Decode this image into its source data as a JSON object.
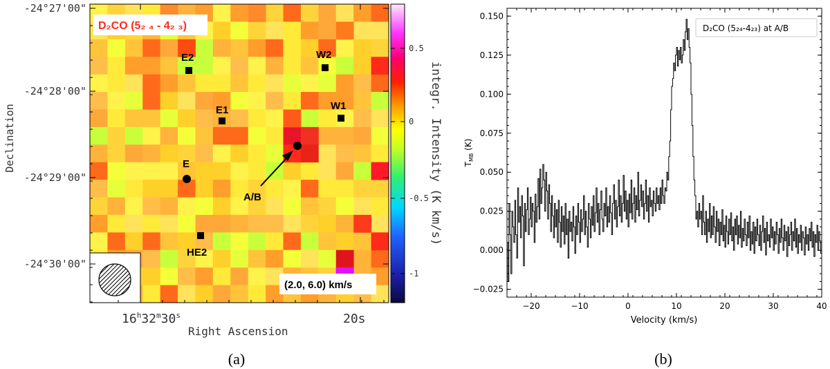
{
  "panel_a": {
    "caption": "(a)",
    "title": "D₂CO (5₂ ₄ - 4₂ ₃)",
    "velocity_range": "(2.0, 6.0) km/s",
    "xlabel": "Right Ascension",
    "ylabel": "Declination",
    "colorbar_label": "integr. Intensity (K km/s)",
    "ra_ticks": [
      {
        "label": "16h32m30s",
        "h": "16",
        "m": "32",
        "s": "30"
      },
      {
        "label": "20s"
      }
    ],
    "dec_ticks": [
      "-24°27'00\"",
      "-24°28'00\"",
      "-24°29'00\"",
      "-24°30'00\""
    ],
    "colorbar_ticks": [
      "0.5",
      "0",
      "-0.5",
      "-1"
    ],
    "colorbar_range": [
      -1.2,
      0.75
    ],
    "sources": [
      {
        "name": "E2",
        "marker": "square"
      },
      {
        "name": "W2",
        "marker": "square"
      },
      {
        "name": "E1",
        "marker": "square"
      },
      {
        "name": "W1",
        "marker": "square"
      },
      {
        "name": "A/B",
        "marker": "circle"
      },
      {
        "name": "E",
        "marker": "circle"
      },
      {
        "name": "HE2",
        "marker": "square"
      }
    ],
    "beam": "hatched-circle"
  },
  "chart_data": [
    {
      "type": "heatmap",
      "title": "D₂CO (5₂ ₄ - 4₂ ₃)",
      "xlabel": "Right Ascension",
      "ylabel": "Declination",
      "colorbar_label": "integr. Intensity (K km/s)",
      "colorbar_range": [
        -1.2,
        0.75
      ],
      "colormap": [
        "#0a0a3a",
        "#2050ff",
        "#00e0ff",
        "#40ff40",
        "#ffff00",
        "#ff8000",
        "#ff0000",
        "#ff00ff",
        "#ffd0ff"
      ],
      "annotation": "(2.0, 6.0) km/s",
      "grid_rows": 17,
      "grid_cols": 17
    },
    {
      "type": "line",
      "title": "",
      "legend": "D₂CO (5₂₄-4₂₃) at A/B",
      "legend_position": "top-right",
      "caption": "(b)",
      "xlabel": "Velocity (km/s)",
      "ylabel": "T_MB (K)",
      "xlim": [
        -25,
        40
      ],
      "ylim": [
        -0.03,
        0.155
      ],
      "xticks": [
        -20,
        -10,
        0,
        10,
        20,
        30,
        40
      ],
      "yticks": [
        -0.025,
        0.0,
        0.025,
        0.05,
        0.075,
        0.1,
        0.125,
        0.15
      ],
      "ytick_labels": [
        "−0.025",
        "0.000",
        "0.025",
        "0.050",
        "0.075",
        "0.100",
        "0.125",
        "0.150"
      ],
      "xtick_labels": [
        "−20",
        "−10",
        "0",
        "10",
        "20",
        "30",
        "40"
      ],
      "channel_width": 0.2,
      "series": [
        {
          "name": "D₂CO (5₂₄-4₂₃) at A/B",
          "line_type": "steps",
          "color": "#000000",
          "x_start": -25.0,
          "x_step": 0.2,
          "y": [
            0.005,
            -0.02,
            0.03,
            0.01,
            -0.015,
            0.025,
            0.015,
            0.005,
            0.032,
            0.01,
            -0.005,
            0.04,
            0.018,
            0.028,
            0.008,
            0.035,
            0.022,
            -0.01,
            0.03,
            0.012,
            0.026,
            0.04,
            0.01,
            0.02,
            0.034,
            0.015,
            0.03,
            0.025,
            0.005,
            0.036,
            0.018,
            0.028,
            0.046,
            0.02,
            0.052,
            0.03,
            0.04,
            0.055,
            0.045,
            0.025,
            0.05,
            0.038,
            0.02,
            0.042,
            0.03,
            0.012,
            0.035,
            0.022,
            0.008,
            0.03,
            0.015,
            0.026,
            0.005,
            0.032,
            0.018,
            0.002,
            0.028,
            0.012,
            0.022,
            0.004,
            0.03,
            0.01,
            0.02,
            -0.005,
            0.025,
            0.012,
            0.018,
            0.006,
            0.028,
            0.015,
            -0.002,
            0.022,
            0.01,
            0.03,
            0.018,
            0.005,
            0.026,
            0.012,
            0.02,
            0.035,
            0.01,
            0.025,
            0.015,
            0.002,
            0.03,
            0.02,
            0.008,
            0.028,
            0.016,
            0.035,
            0.012,
            0.024,
            0.04,
            0.018,
            0.03,
            0.01,
            0.026,
            0.038,
            0.02,
            0.012,
            0.03,
            0.022,
            0.04,
            0.015,
            0.028,
            0.018,
            0.035,
            0.024,
            0.01,
            0.03,
            0.042,
            0.02,
            0.032,
            0.015,
            0.028,
            0.045,
            0.022,
            0.035,
            0.018,
            0.03,
            0.048,
            0.025,
            0.038,
            0.02,
            0.032,
            0.015,
            0.036,
            0.024,
            0.045,
            0.02,
            0.03,
            0.04,
            0.018,
            0.035,
            0.026,
            0.05,
            0.022,
            0.032,
            0.042,
            0.028,
            0.038,
            0.02,
            0.03,
            0.045,
            0.025,
            0.035,
            0.018,
            0.04,
            0.028,
            0.032,
            0.022,
            0.038,
            0.03,
            0.025,
            0.04,
            0.03,
            0.035,
            0.026,
            0.04,
            0.03,
            0.045,
            0.035,
            0.03,
            0.04,
            0.038,
            0.05,
            0.045,
            0.06,
            0.07,
            0.09,
            0.105,
            0.11,
            0.12,
            0.115,
            0.125,
            0.13,
            0.118,
            0.128,
            0.122,
            0.13,
            0.12,
            0.125,
            0.135,
            0.128,
            0.14,
            0.148,
            0.135,
            0.142,
            0.13,
            0.12,
            0.1,
            0.08,
            0.06,
            0.045,
            0.035,
            0.02,
            0.025,
            0.015,
            0.03,
            0.02,
            0.025,
            0.01,
            0.035,
            0.018,
            0.01,
            0.025,
            0.005,
            0.02,
            0.012,
            0.03,
            0.008,
            0.022,
            0.01,
            0.028,
            0.015,
            0.005,
            0.025,
            0.012,
            0.02,
            0.003,
            0.018,
            0.01,
            0.026,
            0.006,
            0.016,
            0.002,
            0.022,
            0.012,
            0.004,
            0.02,
            0.01,
            0.024,
            0.006,
            0.015,
            0.0,
            0.02,
            0.01,
            0.022,
            0.004,
            0.016,
            0.008,
            0.025,
            0.002,
            0.014,
            0.006,
            0.02,
            0.01,
            0.003,
            0.018,
            0.008,
            0.022,
            0.0,
            0.012,
            0.004,
            0.018,
            -0.002,
            0.015,
            0.006,
            0.02,
            0.01,
            0.003,
            0.016,
            0.0,
            0.012,
            0.022,
            0.005,
            0.014,
            -0.003,
            0.018,
            0.006,
            0.01,
            0.002,
            0.02,
            0.008,
            0.015,
            0.0,
            0.012,
            0.004,
            0.018,
            0.01,
            -0.002,
            0.014,
            0.005,
            0.02,
            0.008,
            0.0,
            0.016,
            0.006,
            0.012,
            -0.004,
            0.015,
            0.003,
            0.01,
            0.018,
            0.0,
            0.012,
            0.006,
            0.02,
            0.002,
            0.014,
            -0.002,
            0.01,
            0.005,
            0.016,
            0.0,
            0.012,
            0.008,
            -0.003,
            0.015,
            0.004,
            0.01,
            0.0,
            0.014,
            0.006,
            0.018,
            0.002,
            0.012,
            -0.004,
            0.01,
            0.005,
            0.016,
            0.0,
            0.012,
            0.006,
            -0.002,
            0.014,
            0.003,
            0.01,
            0.018,
            0.0,
            0.012,
            0.005,
            0.015,
            -0.003,
            0.01,
            0.004,
            0.014,
            0.0,
            0.012,
            0.006,
            0.018,
            0.002,
            0.01,
            -0.002,
            0.014,
            0.005,
            0.01,
            0.0,
            0.016,
            0.004,
            0.012,
            -0.004,
            0.01,
            0.006,
            0.015,
            0.0,
            0.012,
            0.003,
            0.018,
            0.008,
            0.002,
            0.012,
            -0.002,
            0.014,
            0.005,
            0.01,
            0.016,
            0.0,
            0.012,
            0.004,
            0.01,
            -0.003,
            0.015,
            0.006,
            0.012,
            0.0,
            0.01,
            0.005,
            0.016,
            0.002,
            0.012,
            -0.004,
            0.014,
            0.006,
            0.01,
            0.0,
            0.015,
            0.004,
            0.012,
            0.008,
            -0.002,
            0.01
          ]
        }
      ]
    }
  ]
}
